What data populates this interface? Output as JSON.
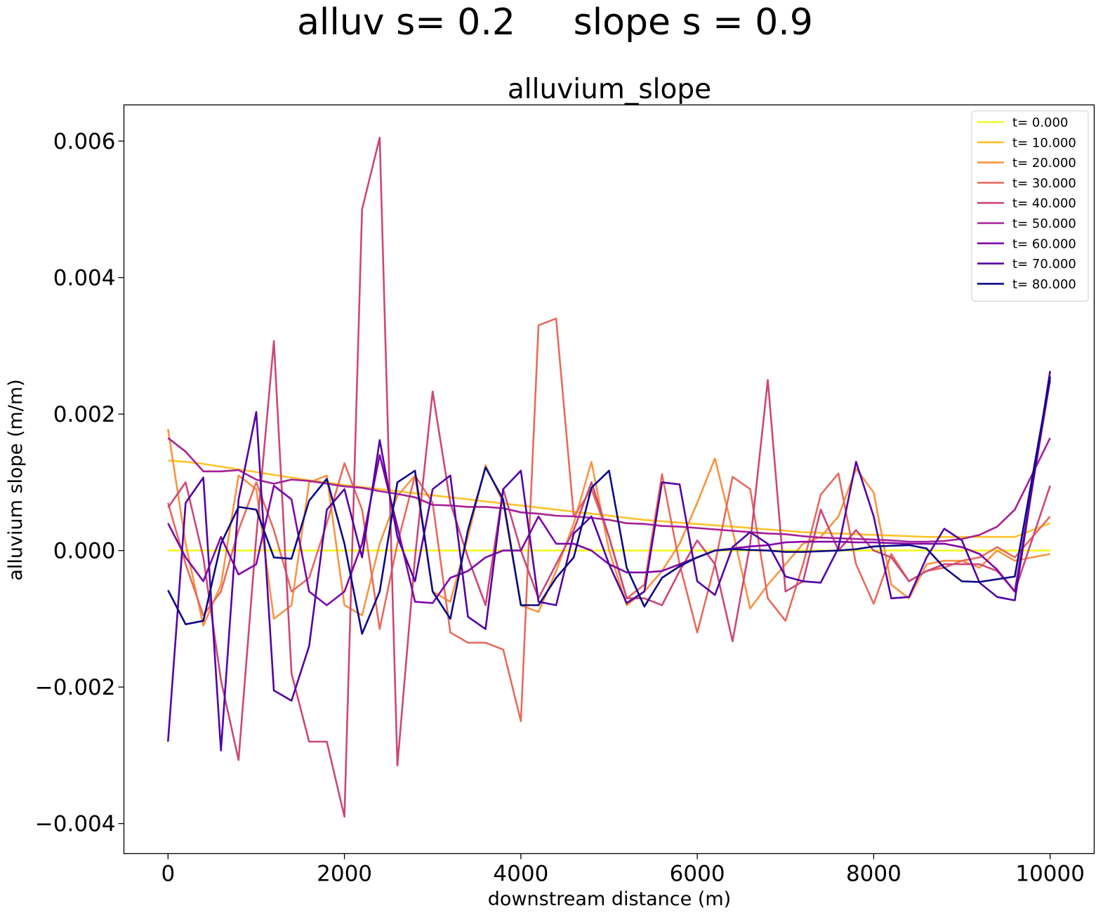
{
  "suptitle": "alluv s= 0.2     slope s = 0.9",
  "chart_data": {
    "type": "line",
    "title": "alluvium_slope",
    "xlabel": "downstream distance (m)",
    "ylabel": "alluvium slope (m/m)",
    "xlim": [
      -500,
      10500
    ],
    "ylim": [
      -0.00444,
      0.00653
    ],
    "xticks": [
      0,
      2000,
      4000,
      6000,
      8000,
      10000
    ],
    "xtick_labels": [
      "0",
      "2000",
      "4000",
      "6000",
      "8000",
      "10000"
    ],
    "yticks": [
      -0.004,
      -0.002,
      0.0,
      0.002,
      0.004,
      0.006
    ],
    "ytick_labels": [
      "−0.004",
      "−0.002",
      "0.000",
      "0.002",
      "0.004",
      "0.006"
    ],
    "grid": false,
    "legend_position": "top-right",
    "x": [
      0,
      200,
      400,
      600,
      800,
      1000,
      1200,
      1400,
      1600,
      1800,
      2000,
      2200,
      2400,
      2600,
      2800,
      3000,
      3200,
      3400,
      3600,
      3800,
      4000,
      4200,
      4400,
      4600,
      4800,
      5000,
      5200,
      5400,
      5600,
      5800,
      6000,
      6200,
      6400,
      6600,
      6800,
      7000,
      7200,
      7400,
      7600,
      7800,
      8000,
      8200,
      8400,
      8600,
      8800,
      9000,
      9200,
      9400,
      9600,
      10000
    ],
    "series": [
      {
        "name": "t= 0.000",
        "color": "#f0f921",
        "values": [
          0,
          0,
          0,
          0,
          0,
          0,
          0,
          0,
          0,
          0,
          0,
          0,
          0,
          0,
          0,
          0,
          0,
          0,
          0,
          0,
          0,
          0,
          0,
          0,
          0,
          0,
          0,
          0,
          0,
          0,
          0,
          0,
          0,
          0,
          0,
          0,
          0,
          0,
          0,
          0,
          0,
          0,
          0,
          0,
          0,
          0,
          0,
          0,
          0,
          0
        ]
      },
      {
        "name": "t= 10.000",
        "color": "#fdc328",
        "values": [
          0.00132,
          0.0013,
          0.00127,
          0.00123,
          0.00119,
          0.00115,
          0.00111,
          0.00107,
          0.00103,
          0.001,
          0.00096,
          0.00093,
          0.0009,
          0.00087,
          0.00084,
          0.00081,
          0.00078,
          0.00075,
          0.00072,
          0.00069,
          0.00066,
          0.00063,
          0.0006,
          0.00057,
          0.00054,
          0.00051,
          0.00048,
          0.00045,
          0.00043,
          0.00041,
          0.00039,
          0.00037,
          0.00035,
          0.00033,
          0.00031,
          0.00029,
          0.00027,
          0.00026,
          0.00025,
          0.00024,
          0.00023,
          0.00022,
          0.00021,
          0.0002,
          0.0002,
          0.0002,
          0.0002,
          0.0002,
          0.0002,
          0.0004
        ]
      },
      {
        "name": "t= 20.000",
        "color": "#f89441",
        "values": [
          0.00178,
          0.0001,
          -0.0011,
          -0.0005,
          0.0011,
          0.0009,
          -0.001,
          -0.0008,
          0.001,
          0.0011,
          -0.0008,
          -0.00095,
          0.0001,
          0.0008,
          0.0011,
          -0.0006,
          -0.00075,
          0.0002,
          0.00125,
          0.0007,
          -0.0008,
          -0.0009,
          -0.0003,
          0.0004,
          0.0013,
          0,
          -0.0008,
          -0.0006,
          -0.0003,
          0.0001,
          0.0007,
          0.00135,
          0.0003,
          -0.00085,
          -0.0005,
          -0.0002,
          0.0001,
          0.0002,
          0.0005,
          0.0012,
          0.00085,
          -0.0005,
          -0.0007,
          -0.0002,
          -0.00015,
          -0.00015,
          -0.00025,
          0,
          -0.00015,
          -5e-05
        ]
      },
      {
        "name": "t= 30.000",
        "color": "#e56b5d",
        "values": [
          0.0007,
          -0.0002,
          -0.00095,
          -0.0006,
          0.0003,
          0.001,
          0.0003,
          -0.0006,
          -0.0004,
          0.0004,
          0.00128,
          0.0006,
          -0.00115,
          0.0001,
          0.0011,
          0.0007,
          -0.0012,
          -0.00135,
          -0.00135,
          -0.00145,
          -0.0025,
          0.0033,
          0.0034,
          0.0005,
          0.0009,
          0.0002,
          -0.0007,
          -0.0005,
          0.00112,
          -0.0002,
          -0.0012,
          -0.0002,
          0.00108,
          0.0009,
          -0.0007,
          -0.00103,
          -0.0002,
          0.00082,
          0.00113,
          -0.0002,
          -0.00078,
          -5e-05,
          -0.00045,
          -0.0003,
          -0.00025,
          -0.00015,
          -0.0001,
          5e-05,
          -0.0001,
          0.0005
        ]
      },
      {
        "name": "t= 40.000",
        "color": "#cb4778",
        "values": [
          0.00063,
          0.001,
          -0.0001,
          -0.0019,
          -0.00307,
          0.0002,
          0.00307,
          -0.0018,
          -0.0028,
          -0.0028,
          -0.0039,
          0.005,
          0.00605,
          -0.00315,
          -0.0001,
          0.00233,
          0.0007,
          -0.0001,
          -0.0008,
          0.0009,
          0,
          -0.0007,
          -0.0002,
          0.0003,
          0.001,
          0.0002,
          -0.0007,
          -0.0007,
          -0.0008,
          -0.0003,
          0.00015,
          -0.0002,
          -0.00133,
          0.0001,
          0.0025,
          -0.0006,
          -0.00045,
          0.0006,
          0,
          0.0003,
          0,
          -0.0001,
          -0.00045,
          -0.0003,
          -0.0002,
          -0.0002,
          -0.0002,
          -0.0003,
          -0.0006,
          0.00095
        ]
      },
      {
        "name": "t= 50.000",
        "color": "#a62098",
        "values": [
          0.00165,
          0.00145,
          0.00116,
          0.00116,
          0.00118,
          0.00104,
          0.00098,
          0.00104,
          0.00102,
          0.00098,
          0.00094,
          0.00092,
          0.00087,
          0.00083,
          0.00078,
          0.00067,
          0.00066,
          0.00064,
          0.00064,
          0.00062,
          0.00056,
          0.00054,
          0.00051,
          0.0005,
          0.00048,
          0.00045,
          0.0004,
          0.00039,
          0.00036,
          0.00035,
          0.00033,
          0.00031,
          0.00029,
          0.00027,
          0.00025,
          0.00024,
          0.00021,
          0.00019,
          0.00018,
          0.00017,
          0.00016,
          0.00015,
          0.00013,
          0.00013,
          0.00014,
          0.00017,
          0.00023,
          0.00035,
          0.0006,
          0.00165
        ]
      },
      {
        "name": "t= 60.000",
        "color": "#8104a7",
        "values": [
          0.0004,
          -0.0001,
          -0.00045,
          0.0002,
          -0.00035,
          -0.0002,
          0.00095,
          0.00075,
          -0.0006,
          -0.0008,
          -0.0006,
          0.0001,
          0.0014,
          0.00035,
          -0.00075,
          -0.00077,
          -0.0004,
          -0.0003,
          -0.0001,
          0,
          0,
          0.0005,
          0.0001,
          0.0001,
          0,
          -0.0002,
          -0.00032,
          -0.00032,
          -0.0003,
          -0.0002,
          -0.0001,
          0,
          3e-05,
          6e-05,
          8e-05,
          0.00012,
          0.00013,
          0.00013,
          0.00013,
          0.00012,
          0.00012,
          0.00011,
          0.0001,
          0.0001,
          0.0001,
          5e-05,
          -5e-05,
          -0.00028,
          -0.0006,
          0.0025
        ]
      },
      {
        "name": "t= 70.000",
        "color": "#5302a3",
        "values": [
          -0.0028,
          0.0007,
          0.00107,
          -0.00293,
          0.00075,
          0.00203,
          -0.00205,
          -0.0022,
          -0.0014,
          0.0006,
          0.0009,
          -0.0001,
          0.00162,
          0.0002,
          -0.00045,
          0.0009,
          0.0011,
          -0.00097,
          -0.00115,
          0.0009,
          0.00117,
          -0.00075,
          -0.0008,
          0.00025,
          0.0005,
          -0.0002,
          -0.00077,
          -0.0006,
          0.001,
          0.00097,
          -0.00045,
          -0.00065,
          5e-05,
          0.00027,
          0.0001,
          -0.00038,
          -0.00045,
          -0.00047,
          4e-05,
          0.0013,
          0.0005,
          -0.0007,
          -0.00068,
          -0.0001,
          0.00032,
          0.00015,
          -0.00047,
          -0.00068,
          -0.00073,
          0.00263
        ]
      },
      {
        "name": "t= 80.000",
        "color": "#0d0887",
        "values": [
          -0.00058,
          -0.00108,
          -0.00103,
          0.0001,
          0.00064,
          0.0006,
          -0.0001,
          -0.00012,
          0.00073,
          0.00105,
          0.0001,
          -0.00122,
          -0.0006,
          0.001,
          0.00117,
          -0.0006,
          -0.001,
          0.0003,
          0.00122,
          0.00075,
          -0.0008,
          -0.0008,
          -0.0004,
          -0.0001,
          0.00092,
          0.00117,
          -0.00025,
          -0.00082,
          -0.0004,
          -0.00023,
          -0.0001,
          0,
          2e-05,
          1e-05,
          0,
          -2e-05,
          -2e-05,
          -1e-05,
          0,
          2e-05,
          6e-05,
          7e-05,
          8e-05,
          3e-05,
          -0.00025,
          -0.00045,
          -0.00046,
          -0.00042,
          -0.00038,
          0.00255
        ]
      }
    ]
  }
}
